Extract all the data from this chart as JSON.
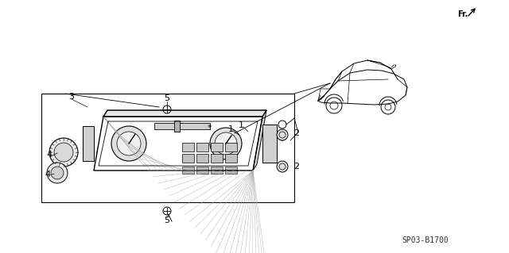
{
  "bg_color": "#ffffff",
  "fig_width": 6.4,
  "fig_height": 3.19,
  "dpi": 100,
  "part_code": "SP03-B1700",
  "fr_label": "Fr.",
  "line_color": "#000000",
  "gray_color": "#888888"
}
